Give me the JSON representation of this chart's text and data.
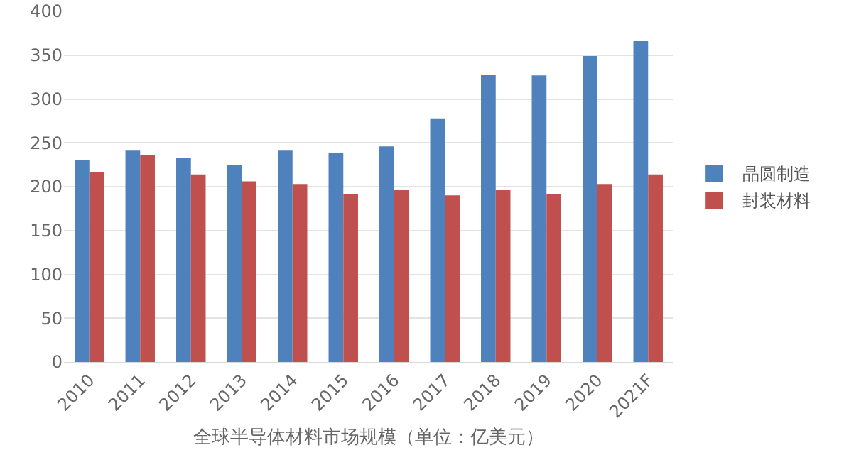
{
  "chart_data": {
    "type": "bar",
    "xlabel": "全球半导体材料市场规模（单位：亿美元）",
    "categories": [
      "2010",
      "2011",
      "2012",
      "2013",
      "2014",
      "2015",
      "2016",
      "2017",
      "2018",
      "2019",
      "2020",
      "2021F"
    ],
    "series": [
      {
        "name": "晶圆制造",
        "color": "#4f81bd",
        "values": [
          230,
          241,
          233,
          225,
          241,
          238,
          246,
          278,
          328,
          327,
          349,
          366
        ]
      },
      {
        "name": "封装材料",
        "color": "#c0504d",
        "values": [
          217,
          236,
          214,
          206,
          203,
          191,
          196,
          190,
          196,
          191,
          203,
          214
        ]
      }
    ],
    "ylim": [
      0,
      400
    ],
    "yticks": [
      0,
      50,
      100,
      150,
      200,
      250,
      300,
      350,
      400
    ],
    "grid": "y",
    "legend": "right"
  }
}
